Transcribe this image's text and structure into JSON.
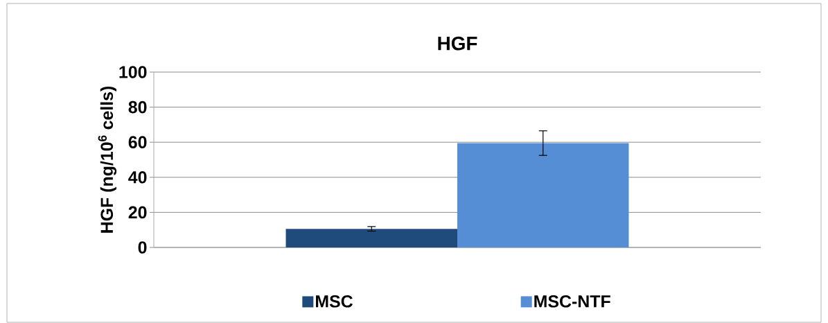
{
  "chart_data": {
    "type": "bar",
    "title": "HGF",
    "ylabel": "HGF (ng/10$^{6}$ cells)",
    "categories": [
      null
    ],
    "series": [
      {
        "name": "MSC",
        "color": "#1f4a7c",
        "values": [
          10.6
        ],
        "errors": [
          1.3
        ]
      },
      {
        "name": "MSC-NTF",
        "color": "#558ed5",
        "values": [
          59.5
        ],
        "errors": [
          7
        ]
      }
    ],
    "ylim": [
      0,
      100
    ],
    "yticks": [
      0,
      20,
      40,
      60,
      80,
      100
    ],
    "grid": "y",
    "legend": "bottom"
  }
}
